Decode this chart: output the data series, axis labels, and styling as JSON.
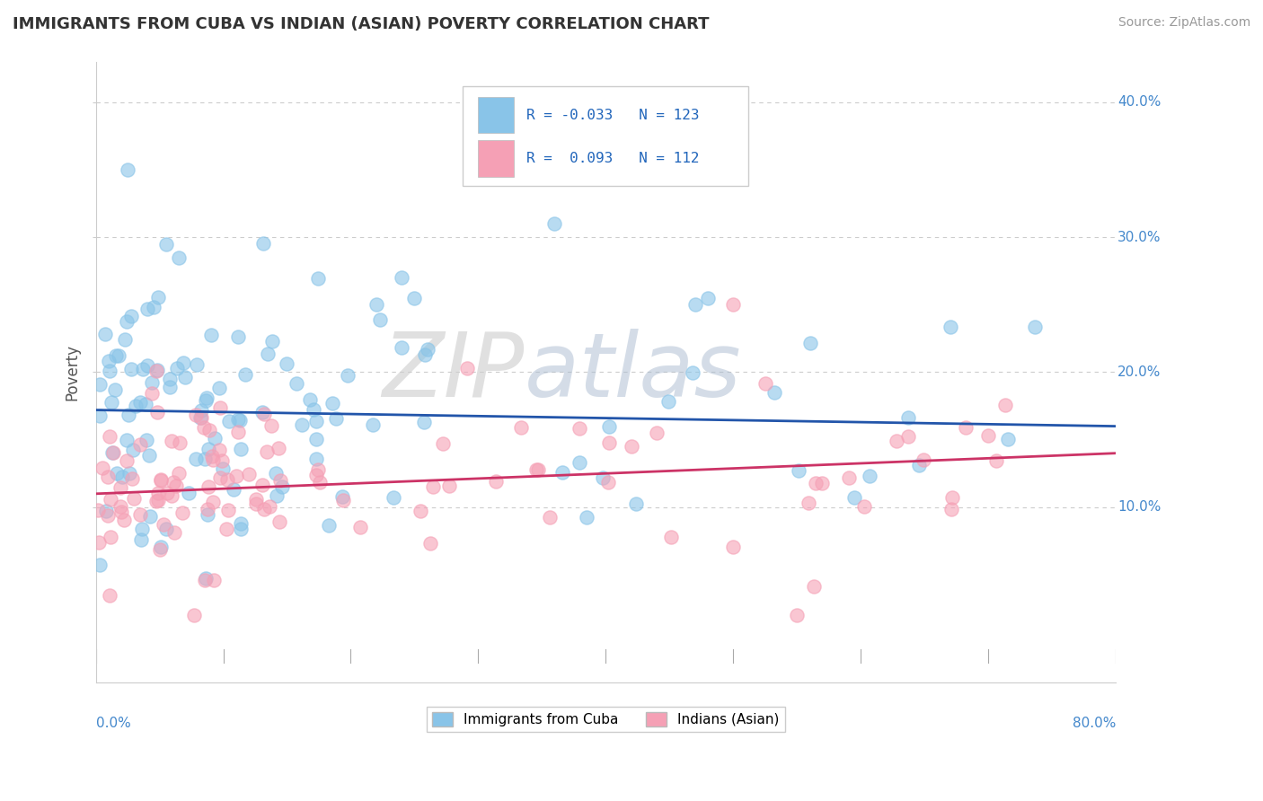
{
  "title": "IMMIGRANTS FROM CUBA VS INDIAN (ASIAN) POVERTY CORRELATION CHART",
  "source": "Source: ZipAtlas.com",
  "ylabel": "Poverty",
  "xlim": [
    0.0,
    80.0
  ],
  "ylim": [
    -3.0,
    43.0
  ],
  "color_cuba": "#89C4E8",
  "color_india": "#F5A0B5",
  "line_color_cuba": "#2255AA",
  "line_color_india": "#CC3366",
  "background_color": "#FFFFFF",
  "grid_color": "#CCCCCC",
  "watermark_zip": "ZIP",
  "watermark_atlas": "atlas",
  "title_fontsize": 13,
  "source_fontsize": 10,
  "ytick_color": "#4488CC",
  "xlabel_color": "#4488CC"
}
